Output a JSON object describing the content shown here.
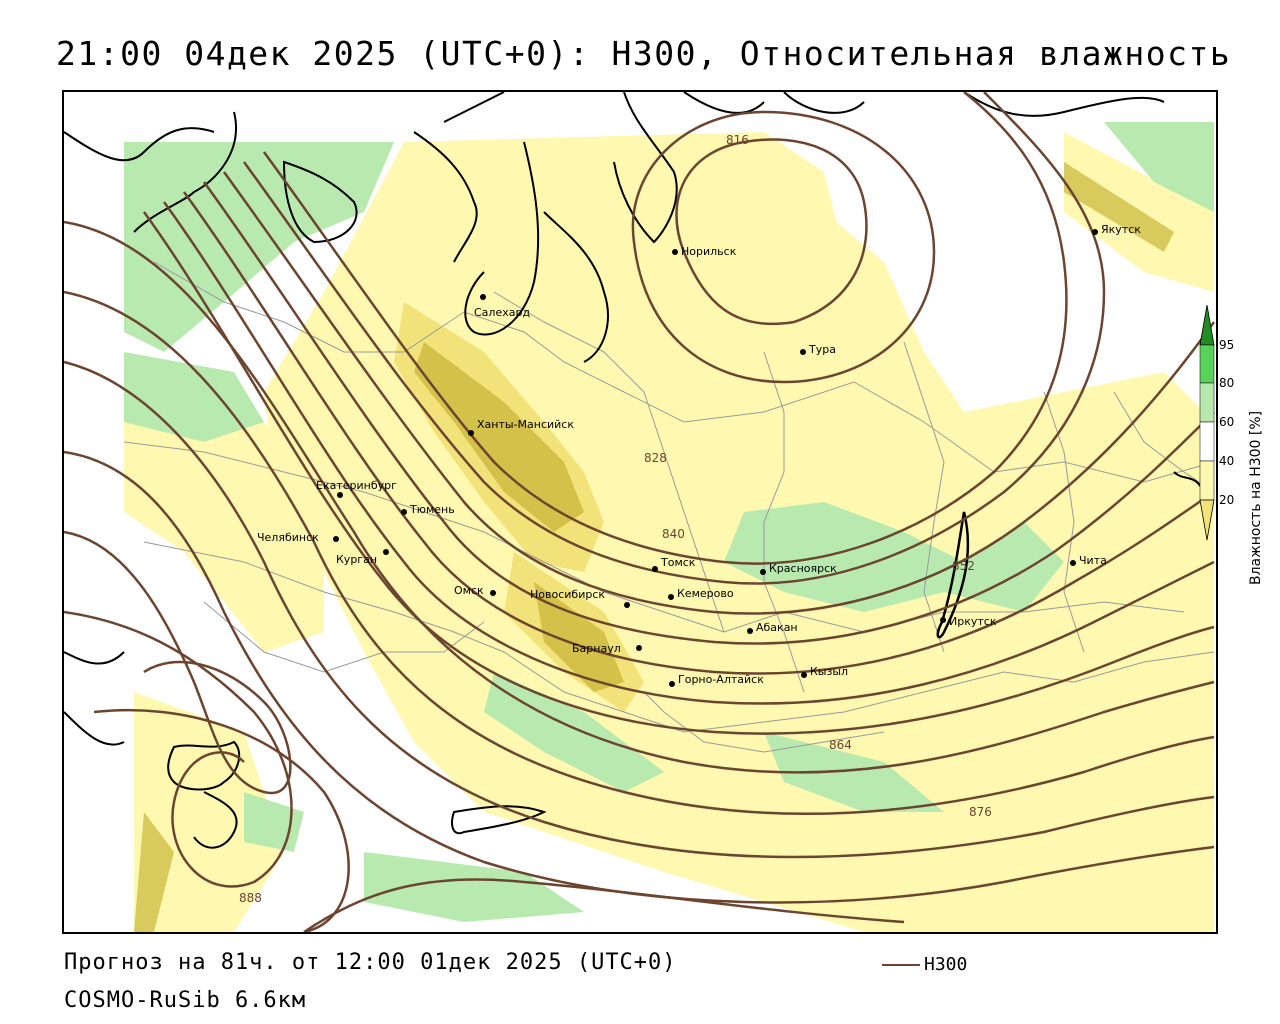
{
  "title": "21:00 04дек 2025 (UTC+0): H300, Относительная влажность",
  "footer": {
    "forecast": "Прогноз на 81ч. от 12:00 01дек 2025 (UTC+0)",
    "model": "COSMO-RuSib 6.6км",
    "contour_legend": "H300"
  },
  "colors": {
    "contour": "#6b4530",
    "rh_20_40": "#fff8b0",
    "rh_40_60": "#f2e27a",
    "rh_60_80": "#c9b63a",
    "rh_80_95": "#b8eab0",
    "rh_95_plus": "#59d259",
    "rh_top": "#228b22",
    "coast": "#000000",
    "border": "#9a9a9a"
  },
  "legend": {
    "title": "Влажность на H300 [%]",
    "ticks": [
      "95",
      "80",
      "60",
      "40",
      "20"
    ]
  },
  "isoline_labels": [
    "816",
    "828",
    "840",
    "852",
    "864",
    "876",
    "888"
  ],
  "cities": [
    {
      "name": "Якутск"
    },
    {
      "name": "Норильск"
    },
    {
      "name": "Салехард"
    },
    {
      "name": "Тура"
    },
    {
      "name": "Ханты-Мансийск"
    },
    {
      "name": "Екатеринбург"
    },
    {
      "name": "Тюмень"
    },
    {
      "name": "Челябинск"
    },
    {
      "name": "Курган"
    },
    {
      "name": "Омск"
    },
    {
      "name": "Новосибирск"
    },
    {
      "name": "Томск"
    },
    {
      "name": "Кемерово"
    },
    {
      "name": "Красноярск"
    },
    {
      "name": "Барнаул"
    },
    {
      "name": "Абакан"
    },
    {
      "name": "Горно-Алтайск"
    },
    {
      "name": "Кызыл"
    },
    {
      "name": "Иркутск"
    },
    {
      "name": "Чита"
    }
  ]
}
